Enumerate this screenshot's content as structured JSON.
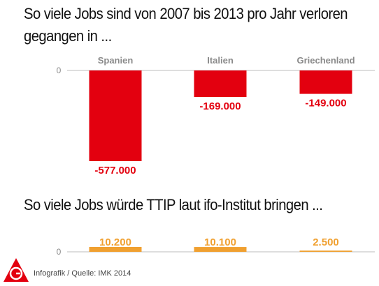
{
  "header": {
    "title": "So viele Jobs sind von 2007 bis 2013 pro Jahr verloren gegangen in ...",
    "title2": "So viele Jobs würde TTIP laut ifo-Institut bringen ..."
  },
  "footer": {
    "source": "Infografik / Quelle: IMK 2014",
    "logo_text": "IGM"
  },
  "colors": {
    "loss": "#e3000f",
    "gain": "#f0a030",
    "axis": "#bdbdbd",
    "category_text": "#8a8a8a"
  },
  "chart_data": [
    {
      "type": "bar",
      "title": "So viele Jobs sind von 2007 bis 2013 pro Jahr verloren gegangen in ...",
      "categories": [
        "Spanien",
        "Italien",
        "Griechenland"
      ],
      "values": [
        -577000,
        -169000,
        -149000
      ],
      "value_labels": [
        "-577.000",
        "-169.000",
        "-149.000"
      ],
      "yticks": [
        "0"
      ],
      "ylim": [
        -600000,
        0
      ],
      "grid": false,
      "color": "#e3000f"
    },
    {
      "type": "bar",
      "title": "So viele Jobs würde TTIP laut ifo-Institut bringen ...",
      "categories": [
        "Spanien",
        "Italien",
        "Griechenland"
      ],
      "values": [
        10200,
        10100,
        2500
      ],
      "value_labels": [
        "10.200",
        "10.100",
        "2.500"
      ],
      "yticks": [
        "0"
      ],
      "grid": false,
      "color": "#f0a030"
    }
  ]
}
